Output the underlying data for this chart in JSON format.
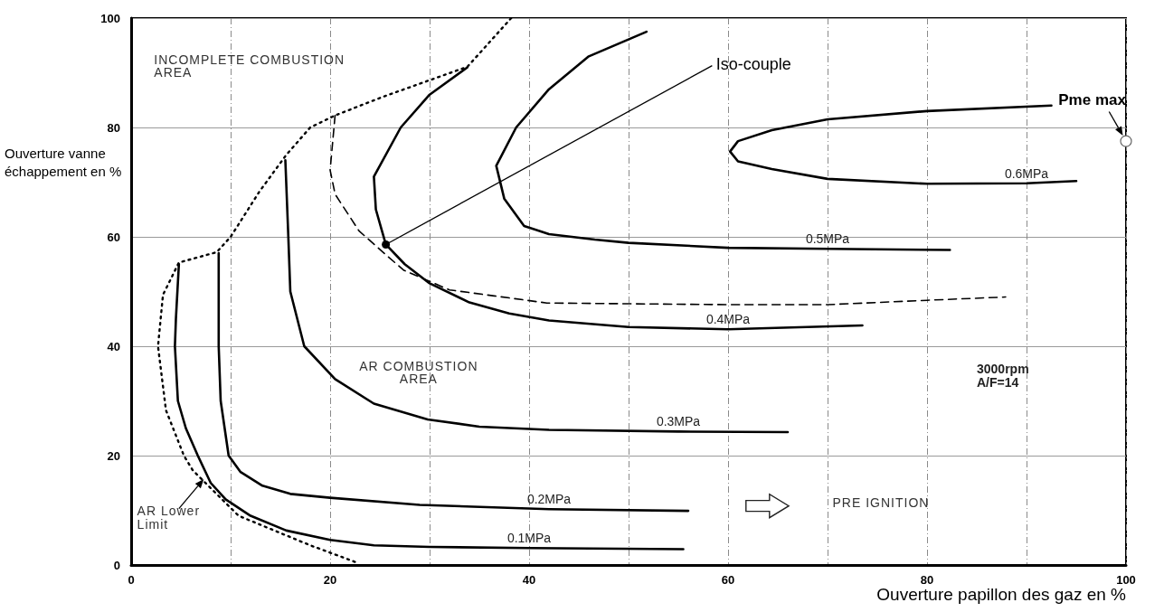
{
  "chart_data": {
    "type": "line",
    "xlabel": "Ouverture papillon des gaz en %",
    "ylabel": "Ouverture vanne échappement en %",
    "xlim": [
      0,
      100
    ],
    "ylim": [
      0,
      100
    ],
    "xticks": [
      0,
      {
        "value": 10,
        "label": null
      },
      20,
      {
        "value": 30,
        "label": null
      },
      40,
      {
        "value": 50,
        "label": null
      },
      60,
      {
        "value": 70,
        "label": null
      },
      80,
      {
        "value": 90,
        "label": null
      },
      100
    ],
    "yticks": [
      0,
      20,
      40,
      60,
      80,
      100
    ],
    "grid": true,
    "marker": "none",
    "line_style": "solid",
    "series": [
      {
        "name": "0.1MPa",
        "color": "#000000",
        "x": [
          4.8,
          4.5,
          4.4,
          4.7,
          5.5,
          6.7,
          8,
          9.5,
          12,
          15.6,
          20,
          24.4,
          30,
          40,
          55.5
        ],
        "values": [
          55,
          45,
          40,
          30,
          25,
          20,
          15,
          12,
          9,
          6.3,
          4.6,
          3.6,
          3.3,
          3.1,
          2.9
        ]
      },
      {
        "name": "0.2MPa",
        "color": "#000000",
        "x": [
          8.8,
          8.8,
          8.8,
          9,
          9.8,
          11,
          13.2,
          16,
          20,
          29,
          42,
          56
        ],
        "values": [
          57,
          50,
          40,
          30,
          20,
          17,
          14.5,
          13,
          12.3,
          11,
          10.2,
          9.9
        ]
      },
      {
        "name": "0.3MPa",
        "color": "#000000",
        "x": [
          15.5,
          15.8,
          16,
          17.4,
          20.5,
          24.4,
          29.8,
          35,
          42,
          55,
          66
        ],
        "values": [
          74,
          60,
          50,
          40,
          34,
          29.5,
          26.6,
          25.3,
          24.7,
          24.4,
          24.3
        ]
      },
      {
        "name": "0.4MPa",
        "color": "#000000",
        "x": [
          33.8,
          30,
          27.1,
          24.4,
          24.6,
          25.6,
          27.5,
          30,
          34,
          38,
          42,
          50,
          60,
          73.5
        ],
        "values": [
          91,
          86,
          80,
          71,
          65,
          58.6,
          55,
          51.5,
          48,
          46,
          44.7,
          43.5,
          43.1,
          43.8
        ]
      },
      {
        "name": "0.5MPa",
        "color": "#000000",
        "x": [
          51.8,
          46,
          42,
          38.7,
          36.7,
          37.5,
          39.5,
          42,
          46.6,
          50,
          60,
          70,
          82.3
        ],
        "values": [
          97.5,
          93,
          87,
          80,
          73,
          67,
          62,
          60.5,
          59.5,
          58.9,
          58,
          57.8,
          57.6
        ]
      },
      {
        "name": "0.6MPa",
        "color": "#000000",
        "x": [
          92.5,
          80,
          70,
          64.4,
          61,
          60.2,
          61,
          64.4,
          70,
          80,
          90,
          95
        ],
        "values": [
          84,
          83,
          81.5,
          79.5,
          77.5,
          75.6,
          73.8,
          72.4,
          70.6,
          69.7,
          69.8,
          70.2
        ]
      },
      {
        "color": "#000000",
        "line_style": "dotted",
        "x": [
          38.2,
          33.8,
          25.3,
          20.5,
          18,
          15.6,
          12.9,
          10,
          8.6,
          4.8,
          3.2,
          2.7,
          3.5,
          5.3,
          6.2,
          10.8,
          18,
          22.9
        ],
        "values": [
          100,
          91.1,
          85.6,
          82.2,
          80,
          75,
          68.3,
          60,
          57.2,
          55.3,
          49.4,
          40,
          28.3,
          20,
          17.3,
          9,
          3.6,
          0.3
        ]
      },
      {
        "color": "#000000",
        "line_style": "dashed",
        "x": [
          20.5,
          20,
          20.5,
          22.9,
          25.3,
          27.4,
          32,
          36.5,
          41.8,
          60,
          70,
          80,
          87.9
        ],
        "values": [
          82.2,
          72.2,
          67.8,
          61.1,
          57.2,
          53.9,
          50.3,
          49.2,
          47.9,
          47.6,
          47.6,
          48.4,
          49
        ]
      }
    ],
    "annotations": [
      "INCOMPLETE COMBUSTION\nAREA",
      "AR COMBUSTION\nAREA",
      "PRE IGNITION",
      "3000rpm\nA/F=14",
      {
        "text": "AR Lower\nLimit",
        "x": 7.3,
        "y": 15.7
      },
      {
        "text": "Iso-couple",
        "x": 25.6,
        "y": 58.6
      },
      {
        "text": "Pme max",
        "x": 100,
        "y": 77.5
      }
    ]
  }
}
